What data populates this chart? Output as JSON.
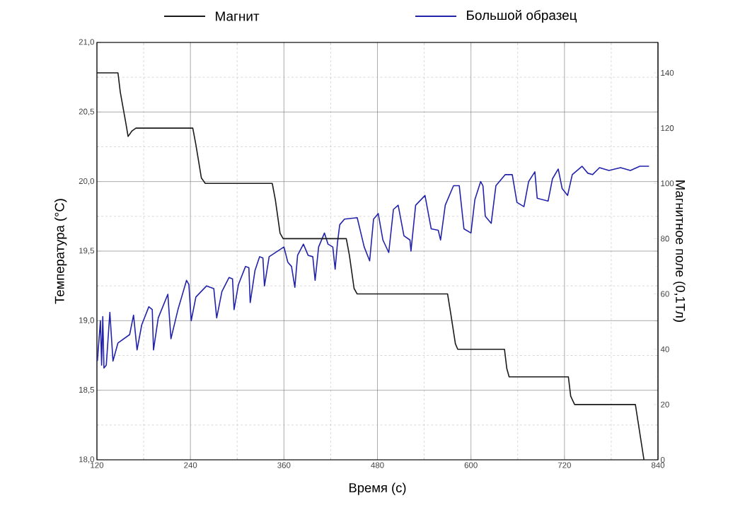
{
  "chart_data": {
    "type": "line",
    "xlabel": "Время (с)",
    "ylabel": "Температура (°C)",
    "y2label": "Магнитное поле  (0,1Тл)",
    "xlim": [
      120,
      840
    ],
    "xticks": [
      120,
      240,
      360,
      480,
      600,
      720,
      840
    ],
    "ylim": [
      18,
      21
    ],
    "yticks": [
      {
        "value": 18,
        "label": "18,0"
      },
      {
        "value": 18.5,
        "label": "18,5"
      },
      {
        "value": 19,
        "label": "19,0"
      },
      {
        "value": 19.5,
        "label": "19,5"
      },
      {
        "value": 20,
        "label": "20,0"
      },
      {
        "value": 20.5,
        "label": "20,5"
      },
      {
        "value": 21,
        "label": "21,0"
      }
    ],
    "y2lim": [
      0,
      151
    ],
    "y2ticks": [
      0,
      20,
      40,
      60,
      80,
      100,
      120,
      140
    ],
    "grid": true,
    "legend": "top",
    "series": [
      {
        "name": "Магнит",
        "color": "#1a1a1a",
        "axis": "y2",
        "x": [
          120,
          147,
          150,
          157,
          160,
          165,
          170,
          243,
          247,
          254,
          259,
          345,
          349,
          355,
          359,
          440,
          444,
          450,
          454,
          570,
          574,
          580,
          583,
          643,
          646,
          649,
          725,
          728,
          733,
          811,
          822
        ],
        "values": [
          140,
          140,
          133,
          122,
          117,
          119,
          120,
          120,
          114,
          102,
          100,
          100,
          94,
          82,
          80,
          80,
          74,
          62,
          60,
          60,
          53,
          42,
          40,
          40,
          33,
          30,
          30,
          23,
          20,
          20,
          0
        ]
      },
      {
        "name": "Большой образец",
        "color": "#2222aa",
        "axis": "y",
        "x": [
          120.6,
          124.5,
          126,
          127.5,
          129,
          132,
          136.6,
          140.6,
          147,
          162,
          167,
          171.5,
          177.5,
          186.6,
          191,
          192.6,
          198.7,
          211,
          215,
          224,
          235,
          238,
          241,
          247,
          260.7,
          270,
          273.7,
          280.4,
          289.5,
          294,
          296,
          301.6,
          310.7,
          315,
          316.7,
          322.8,
          328.8,
          333,
          335,
          341,
          360,
          365,
          369.7,
          374,
          377.5,
          385,
          391,
          397,
          400,
          404.5,
          412,
          416.6,
          422.7,
          425.7,
          428.7,
          431.6,
          437.7,
          454,
          463,
          470,
          475,
          481,
          487,
          494.5,
          500.5,
          506.6,
          514,
          521.7,
          523,
          529,
          541,
          549,
          558,
          561,
          567,
          577.6,
          585,
          591,
          600,
          605,
          612.4,
          615.4,
          618.4,
          626,
          632,
          644,
          653,
          659,
          668,
          674,
          682,
          685,
          699,
          704.6,
          712,
          717,
          724,
          730,
          742.5,
          750,
          756,
          765,
          777,
          792,
          804.6,
          816.7,
          828.5
        ],
        "values": [
          18.71,
          19.0,
          18.68,
          19.03,
          18.66,
          18.68,
          19.06,
          18.71,
          18.84,
          18.9,
          19.04,
          18.79,
          18.97,
          19.1,
          19.08,
          18.79,
          19.02,
          19.19,
          18.87,
          19.08,
          19.29,
          19.26,
          19.0,
          19.17,
          19.25,
          19.23,
          19.02,
          19.21,
          19.31,
          19.3,
          19.08,
          19.26,
          19.39,
          19.38,
          19.13,
          19.36,
          19.46,
          19.45,
          19.25,
          19.46,
          19.53,
          19.42,
          19.39,
          19.24,
          19.47,
          19.55,
          19.47,
          19.46,
          19.29,
          19.53,
          19.63,
          19.55,
          19.53,
          19.37,
          19.56,
          19.69,
          19.73,
          19.74,
          19.53,
          19.43,
          19.73,
          19.77,
          19.58,
          19.49,
          19.8,
          19.83,
          19.61,
          19.58,
          19.5,
          19.83,
          19.9,
          19.66,
          19.65,
          19.58,
          19.83,
          19.97,
          19.97,
          19.66,
          19.63,
          19.87,
          20.0,
          19.97,
          19.75,
          19.7,
          19.97,
          20.05,
          20.05,
          19.85,
          19.82,
          20.0,
          20.07,
          19.88,
          19.86,
          20.02,
          20.09,
          19.95,
          19.9,
          20.05,
          20.11,
          20.06,
          20.05,
          20.1,
          20.08,
          20.1,
          20.08,
          20.11,
          20.11
        ]
      }
    ]
  }
}
